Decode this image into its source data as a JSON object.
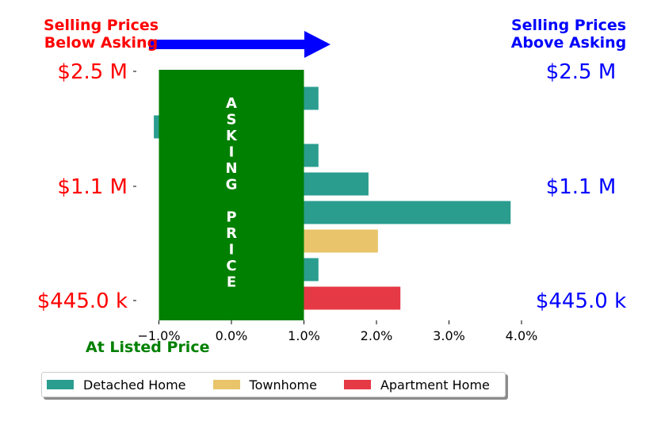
{
  "header": {
    "left_line1": "Selling Prices",
    "left_line2": "Below Asking",
    "right_line1": "Selling Prices",
    "right_line2": "Above Asking"
  },
  "asking_box": {
    "letters": [
      "A",
      "S",
      "K",
      "I",
      "N",
      "G",
      "",
      "P",
      "R",
      "I",
      "C",
      "E"
    ],
    "color": "#008000",
    "x_range": [
      -1.0,
      1.0
    ]
  },
  "bottom_label": "At Listed Price",
  "chart_data": {
    "type": "bar",
    "orientation": "horizontal",
    "xlim": [
      -1.2,
      4.0
    ],
    "xticks": [
      -1.0,
      0.0,
      1.0,
      2.0,
      3.0,
      4.0
    ],
    "xtick_labels": [
      "−1.0%",
      "0.0%",
      "1.0%",
      "2.0%",
      "3.0%",
      "4.0%"
    ],
    "left_tick_labels": [
      "$2.5 M",
      "$1.1 M",
      "$445.0 k"
    ],
    "right_tick_labels": [
      "$2.5 M",
      "$1.1 M",
      "$445.0 k"
    ],
    "bars": [
      {
        "value": 1.2,
        "series": "Detached Home"
      },
      {
        "value": -1.07,
        "series": "Detached Home"
      },
      {
        "value": 1.2,
        "series": "Detached Home"
      },
      {
        "value": 1.89,
        "series": "Detached Home"
      },
      {
        "value": 3.85,
        "series": "Detached Home"
      },
      {
        "value": 2.02,
        "series": "Townhome"
      },
      {
        "value": 1.2,
        "series": "Detached Home"
      },
      {
        "value": 2.33,
        "series": "Apartment Home"
      }
    ],
    "legend": [
      {
        "name": "Detached Home",
        "color": "#2a9d8f"
      },
      {
        "name": "Townhome",
        "color": "#e9c46a"
      },
      {
        "name": "Apartment Home",
        "color": "#e63946"
      }
    ],
    "legend_position": "bottom"
  },
  "colors": {
    "left_label": "#ff0000",
    "right_label": "#0000ff",
    "arrow": "#0000ff"
  }
}
